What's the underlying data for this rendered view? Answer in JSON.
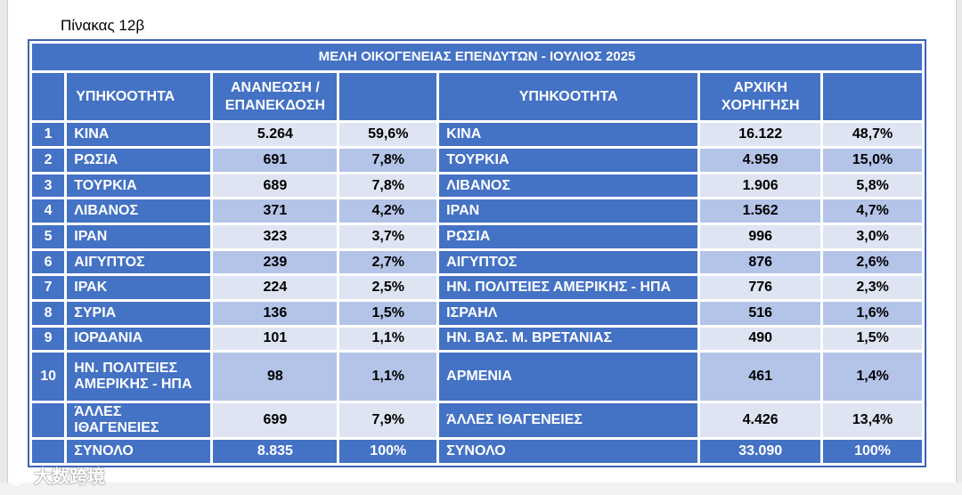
{
  "caption": "Πίνακας 12β",
  "title": "ΜΕΛΗ ΟΙΚΟΓΕΝΕΙΑΣ ΕΠΕΝΔΥΤΩΝ - ΙΟΥΛΙΟΣ 2025",
  "headers": {
    "left_nationality": "ΥΠΗΚΟΟΤΗΤΑ",
    "renewal": "ΑΝΑΝΕΩΣΗ / ΕΠΑΝΕΚΔΟΣΗ",
    "right_nationality": "ΥΠΗΚΟΟΤΗΤΑ",
    "initial": "ΑΡΧΙΚΗ ΧΟΡΗΓΗΣΗ"
  },
  "rows": [
    {
      "rank": "1",
      "l_name": "ΚΙΝΑ",
      "l_val": "5.264",
      "l_pct": "59,6%",
      "r_name": "ΚΙΝΑ",
      "r_val": "16.122",
      "r_pct": "48,7%"
    },
    {
      "rank": "2",
      "l_name": "ΡΩΣΙΑ",
      "l_val": "691",
      "l_pct": "7,8%",
      "r_name": "ΤΟΥΡΚΙΑ",
      "r_val": "4.959",
      "r_pct": "15,0%"
    },
    {
      "rank": "3",
      "l_name": "ΤΟΥΡΚΙΑ",
      "l_val": "689",
      "l_pct": "7,8%",
      "r_name": "ΛΙΒΑΝΟΣ",
      "r_val": "1.906",
      "r_pct": "5,8%"
    },
    {
      "rank": "4",
      "l_name": "ΛΙΒΑΝΟΣ",
      "l_val": "371",
      "l_pct": "4,2%",
      "r_name": "ΙΡΑΝ",
      "r_val": "1.562",
      "r_pct": "4,7%"
    },
    {
      "rank": "5",
      "l_name": "ΙΡΑΝ",
      "l_val": "323",
      "l_pct": "3,7%",
      "r_name": "ΡΩΣΙΑ",
      "r_val": "996",
      "r_pct": "3,0%"
    },
    {
      "rank": "6",
      "l_name": "ΑΙΓΥΠΤΟΣ",
      "l_val": "239",
      "l_pct": "2,7%",
      "r_name": "ΑΙΓΥΠΤΟΣ",
      "r_val": "876",
      "r_pct": "2,6%"
    },
    {
      "rank": "7",
      "l_name": "ΙΡΑΚ",
      "l_val": "224",
      "l_pct": "2,5%",
      "r_name": "ΗΝ. ΠΟΛΙΤΕΙΕΣ ΑΜΕΡΙΚΗΣ - ΗΠΑ",
      "r_val": "776",
      "r_pct": "2,3%"
    },
    {
      "rank": "8",
      "l_name": "ΣΥΡΙΑ",
      "l_val": "136",
      "l_pct": "1,5%",
      "r_name": "ΙΣΡΑΗΛ",
      "r_val": "516",
      "r_pct": "1,6%"
    },
    {
      "rank": "9",
      "l_name": "ΙΟΡΔΑΝΙΑ",
      "l_val": "101",
      "l_pct": "1,1%",
      "r_name": "ΗΝ. ΒΑΣ. Μ. ΒΡΕΤΑΝΙΑΣ",
      "r_val": "490",
      "r_pct": "1,5%"
    },
    {
      "rank": "10",
      "l_name": "ΗΝ. ΠΟΛΙΤΕΙΕΣ ΑΜΕΡΙΚΗΣ - ΗΠΑ",
      "l_val": "98",
      "l_pct": "1,1%",
      "r_name": "ΑΡΜΕΝΙΑ",
      "r_val": "461",
      "r_pct": "1,4%"
    },
    {
      "rank": "",
      "l_name": "ΆΛΛΕΣ ΙΘΑΓΕΝΕΙΕΣ",
      "l_val": "699",
      "l_pct": "7,9%",
      "r_name": "ΆΛΛΕΣ ΙΘΑΓΕΝΕΙΕΣ",
      "r_val": "4.426",
      "r_pct": "13,4%"
    }
  ],
  "total": {
    "label": "ΣΥΝΟΛΟ",
    "l_val": "8.835",
    "l_pct": "100%",
    "r_label": "ΣΥΝΟΛΟ",
    "r_val": "33.090",
    "r_pct": "100%"
  },
  "watermark": "大数跨境",
  "colors": {
    "header_blue": "#4472c4",
    "light_cell": "#dfe4f2",
    "mid_cell": "#b4c4e8"
  }
}
